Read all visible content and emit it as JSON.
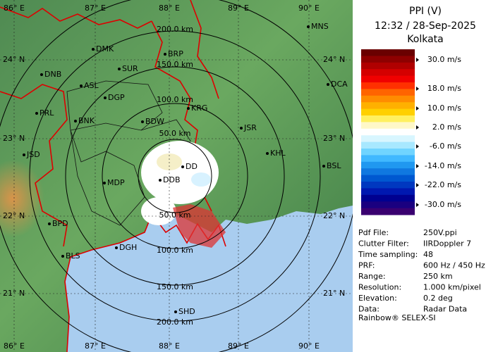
{
  "header": {
    "title": "PPI (V)",
    "datetime": "12:32 / 28-Sep-2025",
    "station": "Kolkata"
  },
  "legend": {
    "labels": [
      "30.0 m/s",
      "18.0 m/s",
      "10.0 m/s",
      "2.0 m/s",
      "-6.0 m/s",
      "-14.0 m/s",
      "-22.0 m/s",
      "-30.0 m/s"
    ]
  },
  "info": {
    "rows": [
      [
        "Pdf File:",
        "250V.ppi"
      ],
      [
        "Clutter Filter:",
        "IIRDoppler 7"
      ],
      [
        "Time sampling:",
        "48"
      ],
      [
        "PRF:",
        "600 Hz / 450 Hz"
      ],
      [
        "Range:",
        "250 km"
      ],
      [
        "Resolution:",
        "1.000 km/pixel"
      ],
      [
        "Elevation:",
        "0.2 deg"
      ],
      [
        "Data:",
        "Radar Data"
      ]
    ],
    "footer": "Rainbow® SELEX-SI"
  },
  "map": {
    "longitudes_top": [
      "86° E",
      "87° E",
      "88° E",
      "89° E",
      "90° E"
    ],
    "longitudes_bottom": [
      "86° E",
      "87° E",
      "88° E",
      "89° E",
      "90° E"
    ],
    "latitudes_left": [
      "24° N",
      "23° N",
      "22° N",
      "21° N"
    ],
    "latitudes_right": [
      "24° N",
      "23° N",
      "22° N",
      "21° N"
    ],
    "range_rings_north": [
      "200.0 km",
      "150.0 km",
      "100.0 km",
      "50.0 km"
    ],
    "range_rings_south": [
      "50.0 km",
      "100.0 km",
      "150.0 km",
      "200.0 km"
    ],
    "cities": [
      "MNS",
      "DMK",
      "BRP",
      "DNB",
      "SUR",
      "ASL",
      "DGP",
      "DCA",
      "PRL",
      "BNK",
      "KRG",
      "BDW",
      "JSR",
      "JSD",
      "KHL",
      "DD",
      "BSL",
      "MDP",
      "DDB",
      "BPD",
      "DGH",
      "BLS",
      "SHD"
    ]
  }
}
